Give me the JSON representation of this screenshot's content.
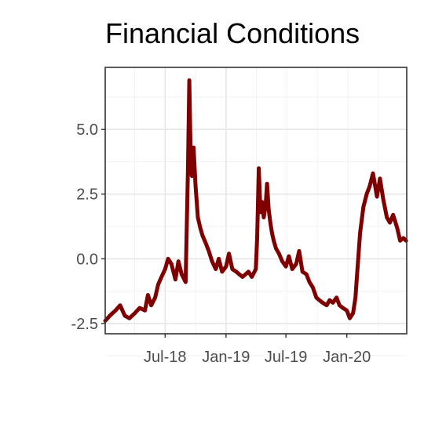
{
  "colors": {
    "line": "#800000",
    "panel_border": "#333333",
    "grid_major": "#e6e6e6",
    "grid_minor": "#f2f2f2",
    "tick_label": "#4d4d4d",
    "title": "#000000"
  },
  "chart_data": {
    "type": "line",
    "title": "Financial Conditions",
    "xlabel": "",
    "ylabel": "",
    "grid": true,
    "legend": "none",
    "xlim": [
      "2018-01-01",
      "2020-06-30"
    ],
    "ylim": [
      -2.9,
      7.4
    ],
    "x_ticks": [
      {
        "date": "2018-07-01",
        "label": "Jul-18"
      },
      {
        "date": "2019-01-01",
        "label": "Jan-19"
      },
      {
        "date": "2019-07-01",
        "label": "Jul-19"
      },
      {
        "date": "2020-01-01",
        "label": "Jan-20"
      }
    ],
    "y_ticks": [
      {
        "value": 5.0,
        "label": "5.0"
      },
      {
        "value": 2.5,
        "label": "2.5"
      },
      {
        "value": 0.0,
        "label": "0.0"
      },
      {
        "value": -2.5,
        "label": "-2.5"
      }
    ],
    "series": [
      {
        "x": [
          "2018-01-01",
          "2018-01-15",
          "2018-02-01",
          "2018-02-15",
          "2018-03-01",
          "2018-03-15",
          "2018-04-01",
          "2018-04-15",
          "2018-05-01",
          "2018-05-10",
          "2018-05-20",
          "2018-06-01",
          "2018-06-10",
          "2018-06-20",
          "2018-07-01",
          "2018-07-10",
          "2018-07-20",
          "2018-08-01",
          "2018-08-10",
          "2018-08-20",
          "2018-09-01",
          "2018-09-08",
          "2018-09-12",
          "2018-09-16",
          "2018-09-20",
          "2018-09-25",
          "2018-10-01",
          "2018-10-08",
          "2018-10-15",
          "2018-10-22",
          "2018-11-01",
          "2018-11-10",
          "2018-11-20",
          "2018-12-01",
          "2018-12-10",
          "2018-12-20",
          "2019-01-01",
          "2019-01-10",
          "2019-01-20",
          "2019-02-01",
          "2019-02-10",
          "2019-02-20",
          "2019-03-01",
          "2019-03-10",
          "2019-03-20",
          "2019-04-01",
          "2019-04-05",
          "2019-04-10",
          "2019-04-15",
          "2019-04-20",
          "2019-04-25",
          "2019-05-01",
          "2019-05-05",
          "2019-05-10",
          "2019-05-15",
          "2019-05-20",
          "2019-05-25",
          "2019-06-01",
          "2019-06-10",
          "2019-06-20",
          "2019-07-01",
          "2019-07-10",
          "2019-07-20",
          "2019-08-01",
          "2019-08-10",
          "2019-08-20",
          "2019-09-01",
          "2019-09-10",
          "2019-09-20",
          "2019-10-01",
          "2019-10-10",
          "2019-10-20",
          "2019-11-01",
          "2019-11-10",
          "2019-11-20",
          "2019-12-01",
          "2019-12-10",
          "2019-12-20",
          "2020-01-01",
          "2020-01-10",
          "2020-01-20",
          "2020-01-27",
          "2020-02-01",
          "2020-02-10",
          "2020-02-20",
          "2020-03-01",
          "2020-03-10",
          "2020-03-20",
          "2020-04-01",
          "2020-04-10",
          "2020-04-20",
          "2020-05-01",
          "2020-05-10",
          "2020-05-20",
          "2020-06-01",
          "2020-06-10",
          "2020-06-20",
          "2020-06-28"
        ],
        "y": [
          -2.4,
          -2.2,
          -2.0,
          -1.8,
          -2.2,
          -2.3,
          -2.1,
          -1.9,
          -2.0,
          -1.4,
          -1.8,
          -1.5,
          -1.0,
          -0.7,
          -0.4,
          0.0,
          -0.2,
          -0.8,
          -0.1,
          -0.6,
          -0.9,
          3.5,
          6.9,
          4.0,
          3.2,
          4.3,
          2.8,
          1.6,
          1.2,
          0.9,
          0.6,
          0.3,
          -0.1,
          -0.4,
          0.0,
          -0.5,
          -0.3,
          0.2,
          -0.4,
          -0.5,
          -0.6,
          -0.7,
          -0.6,
          -0.5,
          -0.7,
          -0.4,
          0.8,
          3.5,
          1.8,
          2.2,
          1.6,
          2.1,
          2.9,
          1.9,
          1.4,
          1.0,
          0.7,
          0.4,
          0.2,
          -0.1,
          -0.3,
          0.1,
          -0.4,
          -0.2,
          0.3,
          -0.5,
          -0.6,
          -0.9,
          -1.1,
          -1.5,
          -1.6,
          -1.7,
          -1.8,
          -1.6,
          -1.7,
          -1.5,
          -1.8,
          -1.9,
          -2.0,
          -2.3,
          -2.1,
          -1.5,
          -0.6,
          1.0,
          2.0,
          2.5,
          2.8,
          3.3,
          2.4,
          3.1,
          2.3,
          1.6,
          1.4,
          1.7,
          1.2,
          0.7,
          0.8,
          0.7
        ]
      }
    ]
  }
}
